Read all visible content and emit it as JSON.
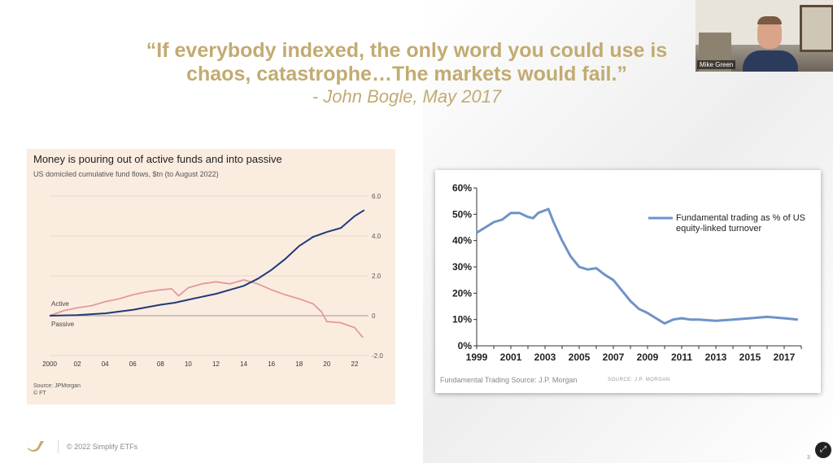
{
  "quote": {
    "line1": "“If everybody indexed, the only word you could use is",
    "line2": "chaos, catastrophe…The markets would fail.”",
    "author": "- John Bogle, May 2017"
  },
  "video": {
    "participant_name": "Mike Green"
  },
  "footer": {
    "copyright": "© 2022 Simplify ETFs",
    "page": "3"
  },
  "colors": {
    "gold": "#c2ab72",
    "passive": "#1f3a78",
    "active": "#e39a9a",
    "jpm_line": "#6f93c9"
  },
  "chart_data": [
    {
      "type": "line",
      "title": "Money is pouring out of active funds and into passive",
      "subtitle": "US domiciled cumulative fund flows, $tn (to August 2022)",
      "source": "Source: JPMorgan",
      "credit": "© FT",
      "x_ticks": [
        "2000",
        "02",
        "04",
        "06",
        "08",
        "10",
        "12",
        "14",
        "16",
        "18",
        "20",
        "22"
      ],
      "y_ticks": [
        "6.0",
        "4.0",
        "2.0",
        "0",
        "-2.0"
      ],
      "xlim": [
        2000,
        2023
      ],
      "ylim": [
        -2,
        6
      ],
      "series": [
        {
          "name": "Active",
          "points": [
            [
              2000,
              0
            ],
            [
              2001,
              0.25
            ],
            [
              2002,
              0.4
            ],
            [
              2003,
              0.5
            ],
            [
              2004,
              0.7
            ],
            [
              2005,
              0.85
            ],
            [
              2006,
              1.05
            ],
            [
              2007,
              1.2
            ],
            [
              2008,
              1.3
            ],
            [
              2008.8,
              1.35
            ],
            [
              2009.3,
              1.0
            ],
            [
              2010,
              1.4
            ],
            [
              2011,
              1.6
            ],
            [
              2012,
              1.7
            ],
            [
              2013,
              1.6
            ],
            [
              2014,
              1.8
            ],
            [
              2015,
              1.6
            ],
            [
              2016,
              1.3
            ],
            [
              2017,
              1.05
            ],
            [
              2018,
              0.85
            ],
            [
              2019,
              0.6
            ],
            [
              2019.6,
              0.2
            ],
            [
              2020,
              -0.3
            ],
            [
              2021,
              -0.35
            ],
            [
              2022,
              -0.6
            ],
            [
              2022.6,
              -1.1
            ]
          ]
        },
        {
          "name": "Passive",
          "points": [
            [
              2000,
              0
            ],
            [
              2002,
              0.03
            ],
            [
              2004,
              0.12
            ],
            [
              2006,
              0.3
            ],
            [
              2008,
              0.55
            ],
            [
              2009,
              0.65
            ],
            [
              2010,
              0.8
            ],
            [
              2011,
              0.95
            ],
            [
              2012,
              1.1
            ],
            [
              2013,
              1.3
            ],
            [
              2014,
              1.5
            ],
            [
              2015,
              1.85
            ],
            [
              2016,
              2.3
            ],
            [
              2017,
              2.85
            ],
            [
              2018,
              3.5
            ],
            [
              2019,
              3.95
            ],
            [
              2020,
              4.2
            ],
            [
              2021,
              4.4
            ],
            [
              2022,
              5.0
            ],
            [
              2022.7,
              5.3
            ]
          ]
        }
      ]
    },
    {
      "type": "line",
      "source": "Fundamental Trading Source: J.P. Morgan",
      "source_label": "SOURCE: J.P. MORGAN",
      "x_ticks": [
        "1999",
        "2001",
        "2003",
        "2005",
        "2007",
        "2009",
        "2011",
        "2013",
        "2015",
        "2017"
      ],
      "y_ticks": [
        "60%",
        "50%",
        "40%",
        "30%",
        "20%",
        "10%",
        "0%"
      ],
      "xlim": [
        1999,
        2018
      ],
      "ylim": [
        0,
        60
      ],
      "series": [
        {
          "name": "Fundamental trading as % of US equity-linked turnover",
          "points": [
            [
              1999,
              43
            ],
            [
              1999.5,
              45
            ],
            [
              2000,
              47
            ],
            [
              2000.5,
              48
            ],
            [
              2001,
              50.5
            ],
            [
              2001.5,
              50.5
            ],
            [
              2002,
              49
            ],
            [
              2002.3,
              48.5
            ],
            [
              2002.6,
              50.5
            ],
            [
              2003,
              51.5
            ],
            [
              2003.2,
              52
            ],
            [
              2003.5,
              47
            ],
            [
              2004,
              40
            ],
            [
              2004.5,
              34
            ],
            [
              2005,
              30
            ],
            [
              2005.5,
              29
            ],
            [
              2006,
              29.5
            ],
            [
              2006.5,
              27
            ],
            [
              2007,
              25
            ],
            [
              2007.5,
              21
            ],
            [
              2008,
              17
            ],
            [
              2008.5,
              14
            ],
            [
              2009,
              12.5
            ],
            [
              2009.5,
              10.5
            ],
            [
              2010,
              8.5
            ],
            [
              2010.5,
              10
            ],
            [
              2011,
              10.5
            ],
            [
              2011.5,
              10
            ],
            [
              2012,
              10
            ],
            [
              2013,
              9.5
            ],
            [
              2014,
              10
            ],
            [
              2015,
              10.5
            ],
            [
              2016,
              11
            ],
            [
              2017,
              10.5
            ],
            [
              2017.8,
              10
            ]
          ]
        }
      ]
    }
  ]
}
